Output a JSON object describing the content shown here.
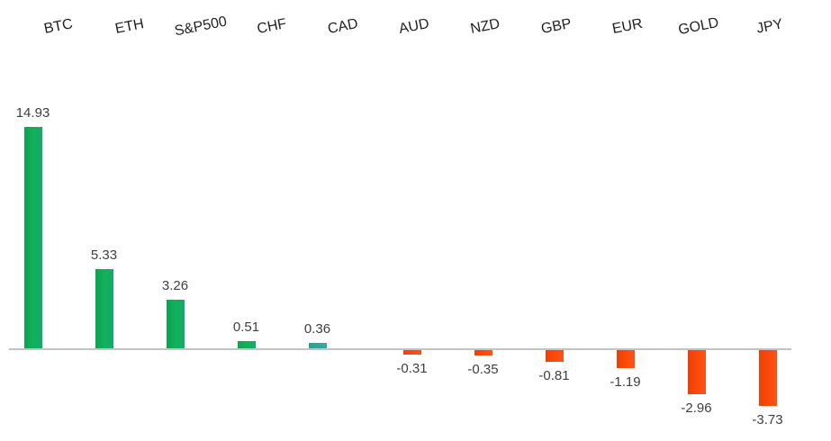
{
  "chart_data": {
    "type": "bar",
    "orientation": "vertical",
    "title": "",
    "xlabel": "",
    "ylabel": "",
    "grid": false,
    "legend_position": "none",
    "axis_labels_position": "high",
    "ylim": [
      -4.5,
      15.5
    ],
    "categories": [
      "BTC",
      "ETH",
      "S&P500",
      "CHF",
      "CAD",
      "AUD",
      "NZD",
      "GBP",
      "EUR",
      "GOLD",
      "JPY"
    ],
    "values": [
      14.93,
      5.33,
      3.26,
      0.51,
      0.36,
      -0.31,
      -0.35,
      -0.81,
      -1.19,
      -2.96,
      -3.73
    ],
    "value_labels": [
      "14.93",
      "5.33",
      "3.26",
      "0.51",
      "0.36",
      "-0.31",
      "-0.35",
      "-0.81",
      "-1.19",
      "-2.96",
      "-3.73"
    ],
    "bar_colors": [
      "#0fae58",
      "#0fae58",
      "#0fae58",
      "#0fae58",
      "#2fa69b",
      "#f94306",
      "#f94306",
      "#f94306",
      "#f94306",
      "#f94306",
      "#f94306"
    ],
    "colors": {
      "positive_green": "#0fae58",
      "positive_teal": "#2fa69b",
      "negative_orange": "#f94306",
      "axis_line": "#c3c3c3",
      "category_text": "#1f1f1f",
      "value_text": "#3f3f3f",
      "background": "#ffffff"
    }
  }
}
